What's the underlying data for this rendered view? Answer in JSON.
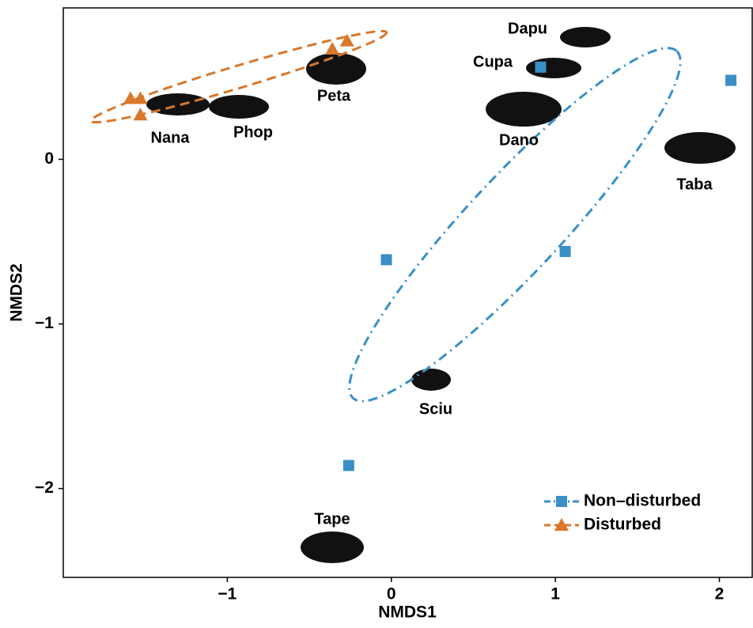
{
  "chart_data": {
    "type": "scatter",
    "x_label": "NMDS1",
    "y_label": "NMDS2",
    "xlim": [
      -2.0,
      2.2
    ],
    "ylim": [
      -2.54,
      0.92
    ],
    "xticks": [
      {
        "value": -1,
        "label": "−1"
      },
      0,
      1,
      2
    ],
    "yticks": [
      0,
      {
        "value": -1,
        "label": "−1"
      },
      {
        "value": -2,
        "label": "−2"
      }
    ],
    "series": [
      {
        "name": "Non–disturbed",
        "color": "#3a8fc6",
        "marker": "square",
        "x": [
          2.07,
          0.91,
          -0.03,
          1.06,
          -0.26
        ],
        "values": [
          0.48,
          0.56,
          -0.61,
          -0.56,
          -1.86
        ]
      },
      {
        "name": "Disturbed",
        "color": "#d9772b",
        "marker": "triangle",
        "x": [
          -1.59,
          -1.53,
          -1.53,
          -0.36,
          -0.27
        ],
        "values": [
          0.37,
          0.37,
          0.27,
          0.67,
          0.72
        ]
      }
    ],
    "annotations": [
      "Dapu",
      "Cupa",
      "Nana",
      "Phop",
      "Peta",
      "Dano",
      "Taba",
      "Sciu",
      "Tape"
    ],
    "legend": "bottom-right"
  }
}
